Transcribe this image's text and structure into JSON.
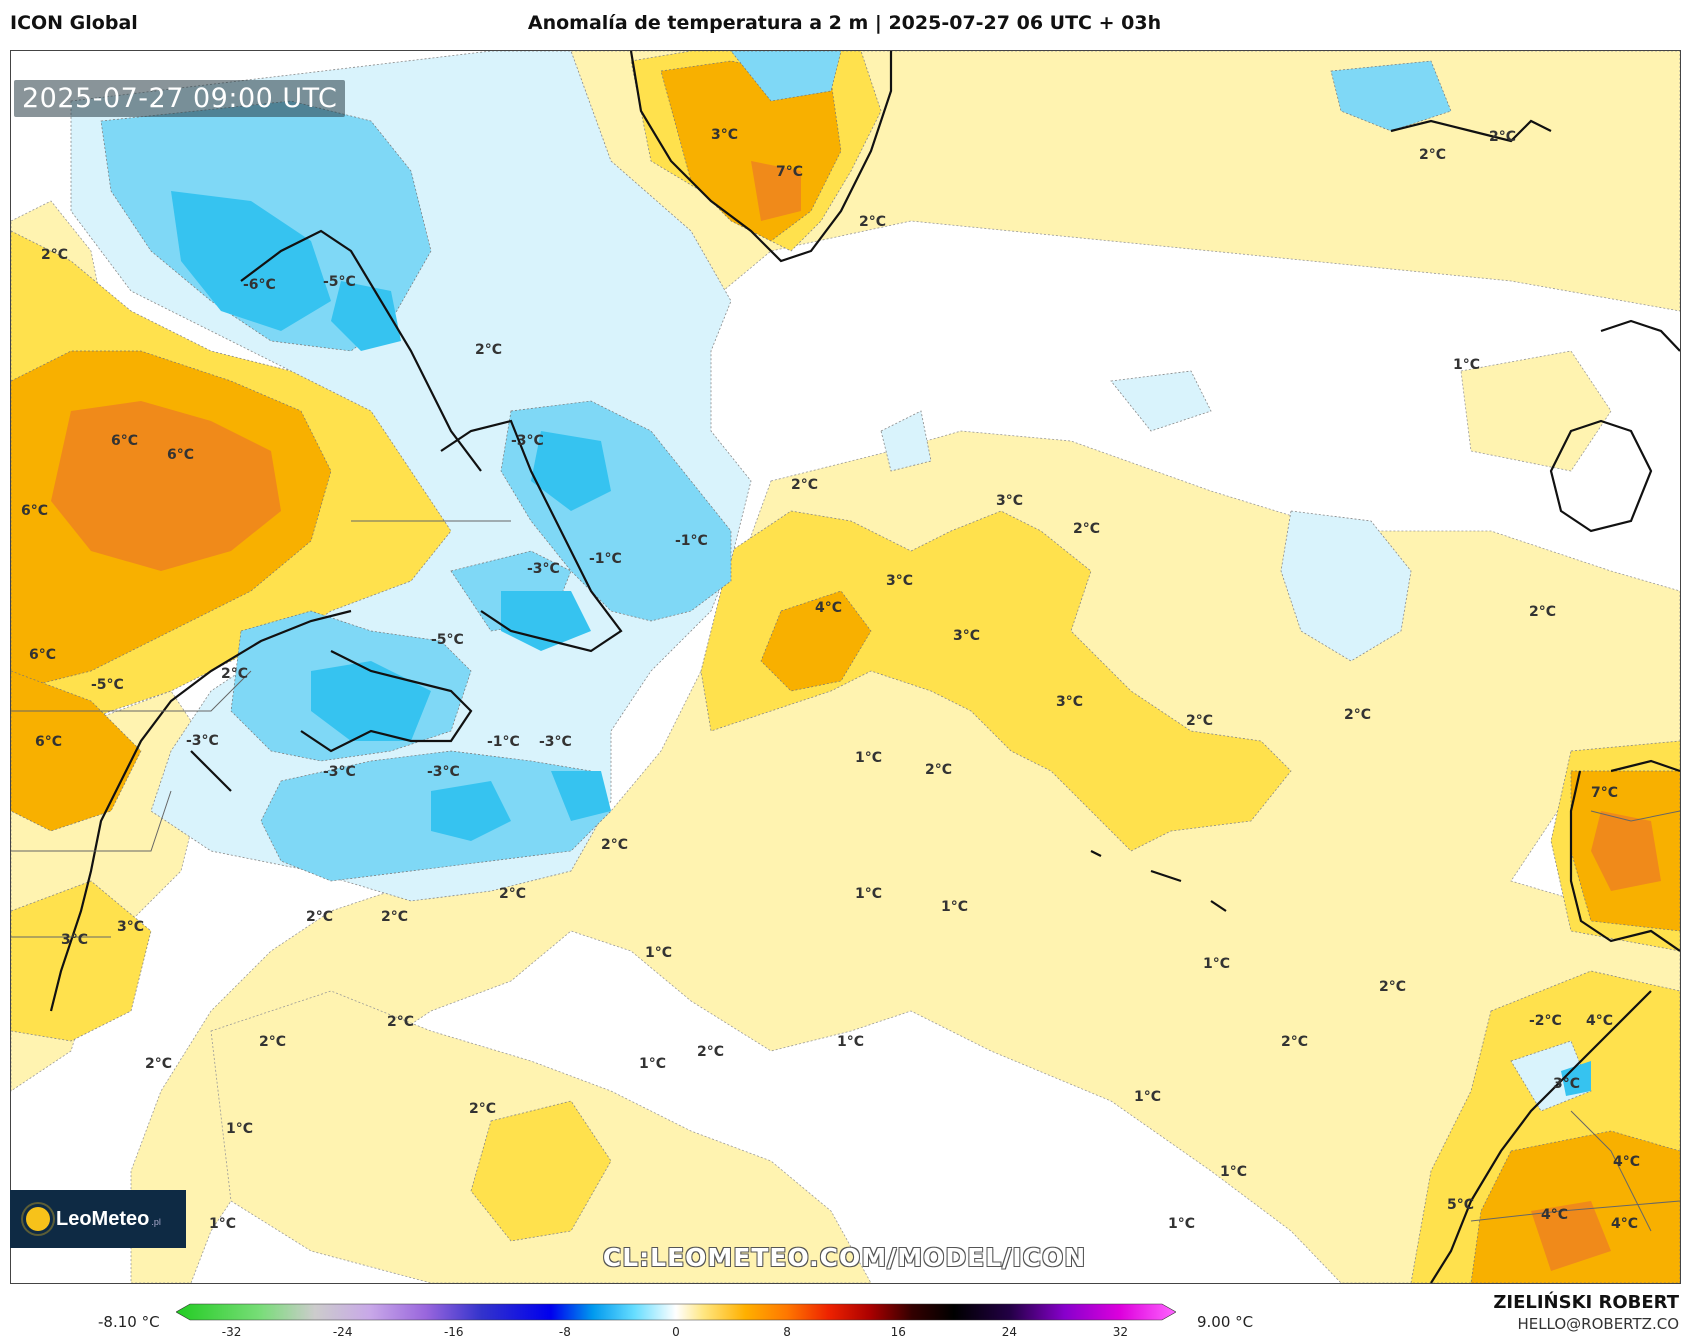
{
  "header": {
    "model": "ICON Global",
    "title": "Anomalía de temperatura a 2 m | 2025-07-27 06 UTC + 03h"
  },
  "map": {
    "valid_time": "2025-07-27 09:00 UTC",
    "url": "CL:LEOMETEO.COM/MODEL/ICON",
    "logo": {
      "name": "LeoMeteo",
      "suffix": ".pl",
      "icon": "sun-icon"
    },
    "labels": [
      "3°C",
      "7°C",
      "2°C",
      "2°C",
      "2°C",
      "2°C",
      "-6°C",
      "-5°C",
      "2°C",
      "1°C",
      "6°C",
      "6°C",
      "6°C",
      "-3°C",
      "2°C",
      "3°C",
      "2°C",
      "-1°C",
      "-3°C",
      "3°C",
      "4°C",
      "3°C",
      "2°C",
      "6°C",
      "-1°C",
      "-5°C",
      "-5°C",
      "2°C",
      "3°C",
      "2°C",
      "6°C",
      "-3°C",
      "-3°C",
      "-3°C",
      "-1°C",
      "-3°C",
      "1°C",
      "2°C",
      "7°C",
      "2°C",
      "2°C",
      "1°C",
      "1°C",
      "3°C",
      "3°C",
      "2°C",
      "2°C",
      "1°C",
      "1°C",
      "2°C",
      "2°C",
      "-2°C",
      "4°C",
      "2°C",
      "2°C",
      "1°C",
      "2°C",
      "1°C",
      "2°C",
      "3°C",
      "2°C",
      "1°C",
      "1°C",
      "2°C",
      "4°C",
      "1°C",
      "1°C",
      "5°C",
      "4°C",
      "4°C",
      "1°C"
    ]
  },
  "colorbar": {
    "min_label": "-8.10 °C",
    "max_label": "9.00 °C",
    "ticks": [
      "-32",
      "-24",
      "-16",
      "-8",
      "0",
      "8",
      "16",
      "24",
      "32"
    ],
    "range": [
      -36,
      36
    ],
    "stops": [
      {
        "v": -36,
        "c": "#22cc22"
      },
      {
        "v": -30,
        "c": "#77dd77"
      },
      {
        "v": -26,
        "c": "#cccccc"
      },
      {
        "v": -22,
        "c": "#c8a8e8"
      },
      {
        "v": -18,
        "c": "#9966dd"
      },
      {
        "v": -14,
        "c": "#3333cc"
      },
      {
        "v": -9,
        "c": "#0000ee"
      },
      {
        "v": -6,
        "c": "#0099ee"
      },
      {
        "v": -3,
        "c": "#66ddff"
      },
      {
        "v": 0,
        "c": "#ffffff"
      },
      {
        "v": 2,
        "c": "#ffe680"
      },
      {
        "v": 5,
        "c": "#ffb000"
      },
      {
        "v": 8,
        "c": "#ff7700"
      },
      {
        "v": 11,
        "c": "#ee2200"
      },
      {
        "v": 14,
        "c": "#aa0000"
      },
      {
        "v": 17,
        "c": "#330000"
      },
      {
        "v": 20,
        "c": "#000000"
      },
      {
        "v": 24,
        "c": "#220044"
      },
      {
        "v": 28,
        "c": "#8800cc"
      },
      {
        "v": 32,
        "c": "#dd00dd"
      },
      {
        "v": 36,
        "c": "#ff66ff"
      }
    ]
  },
  "author": {
    "name": "ZIELIŃSKI ROBERT",
    "email": "HELLO@ROBERTZ.CO"
  },
  "colors": {
    "warm_light": "#fff3b0",
    "warm_mid": "#ffe14d",
    "warm_orange": "#f8b000",
    "warm_dark": "#f08a1a",
    "cool_light": "#d9f3fc",
    "cool_mid": "#7fd8f6",
    "cool_dark": "#36c3f0"
  }
}
